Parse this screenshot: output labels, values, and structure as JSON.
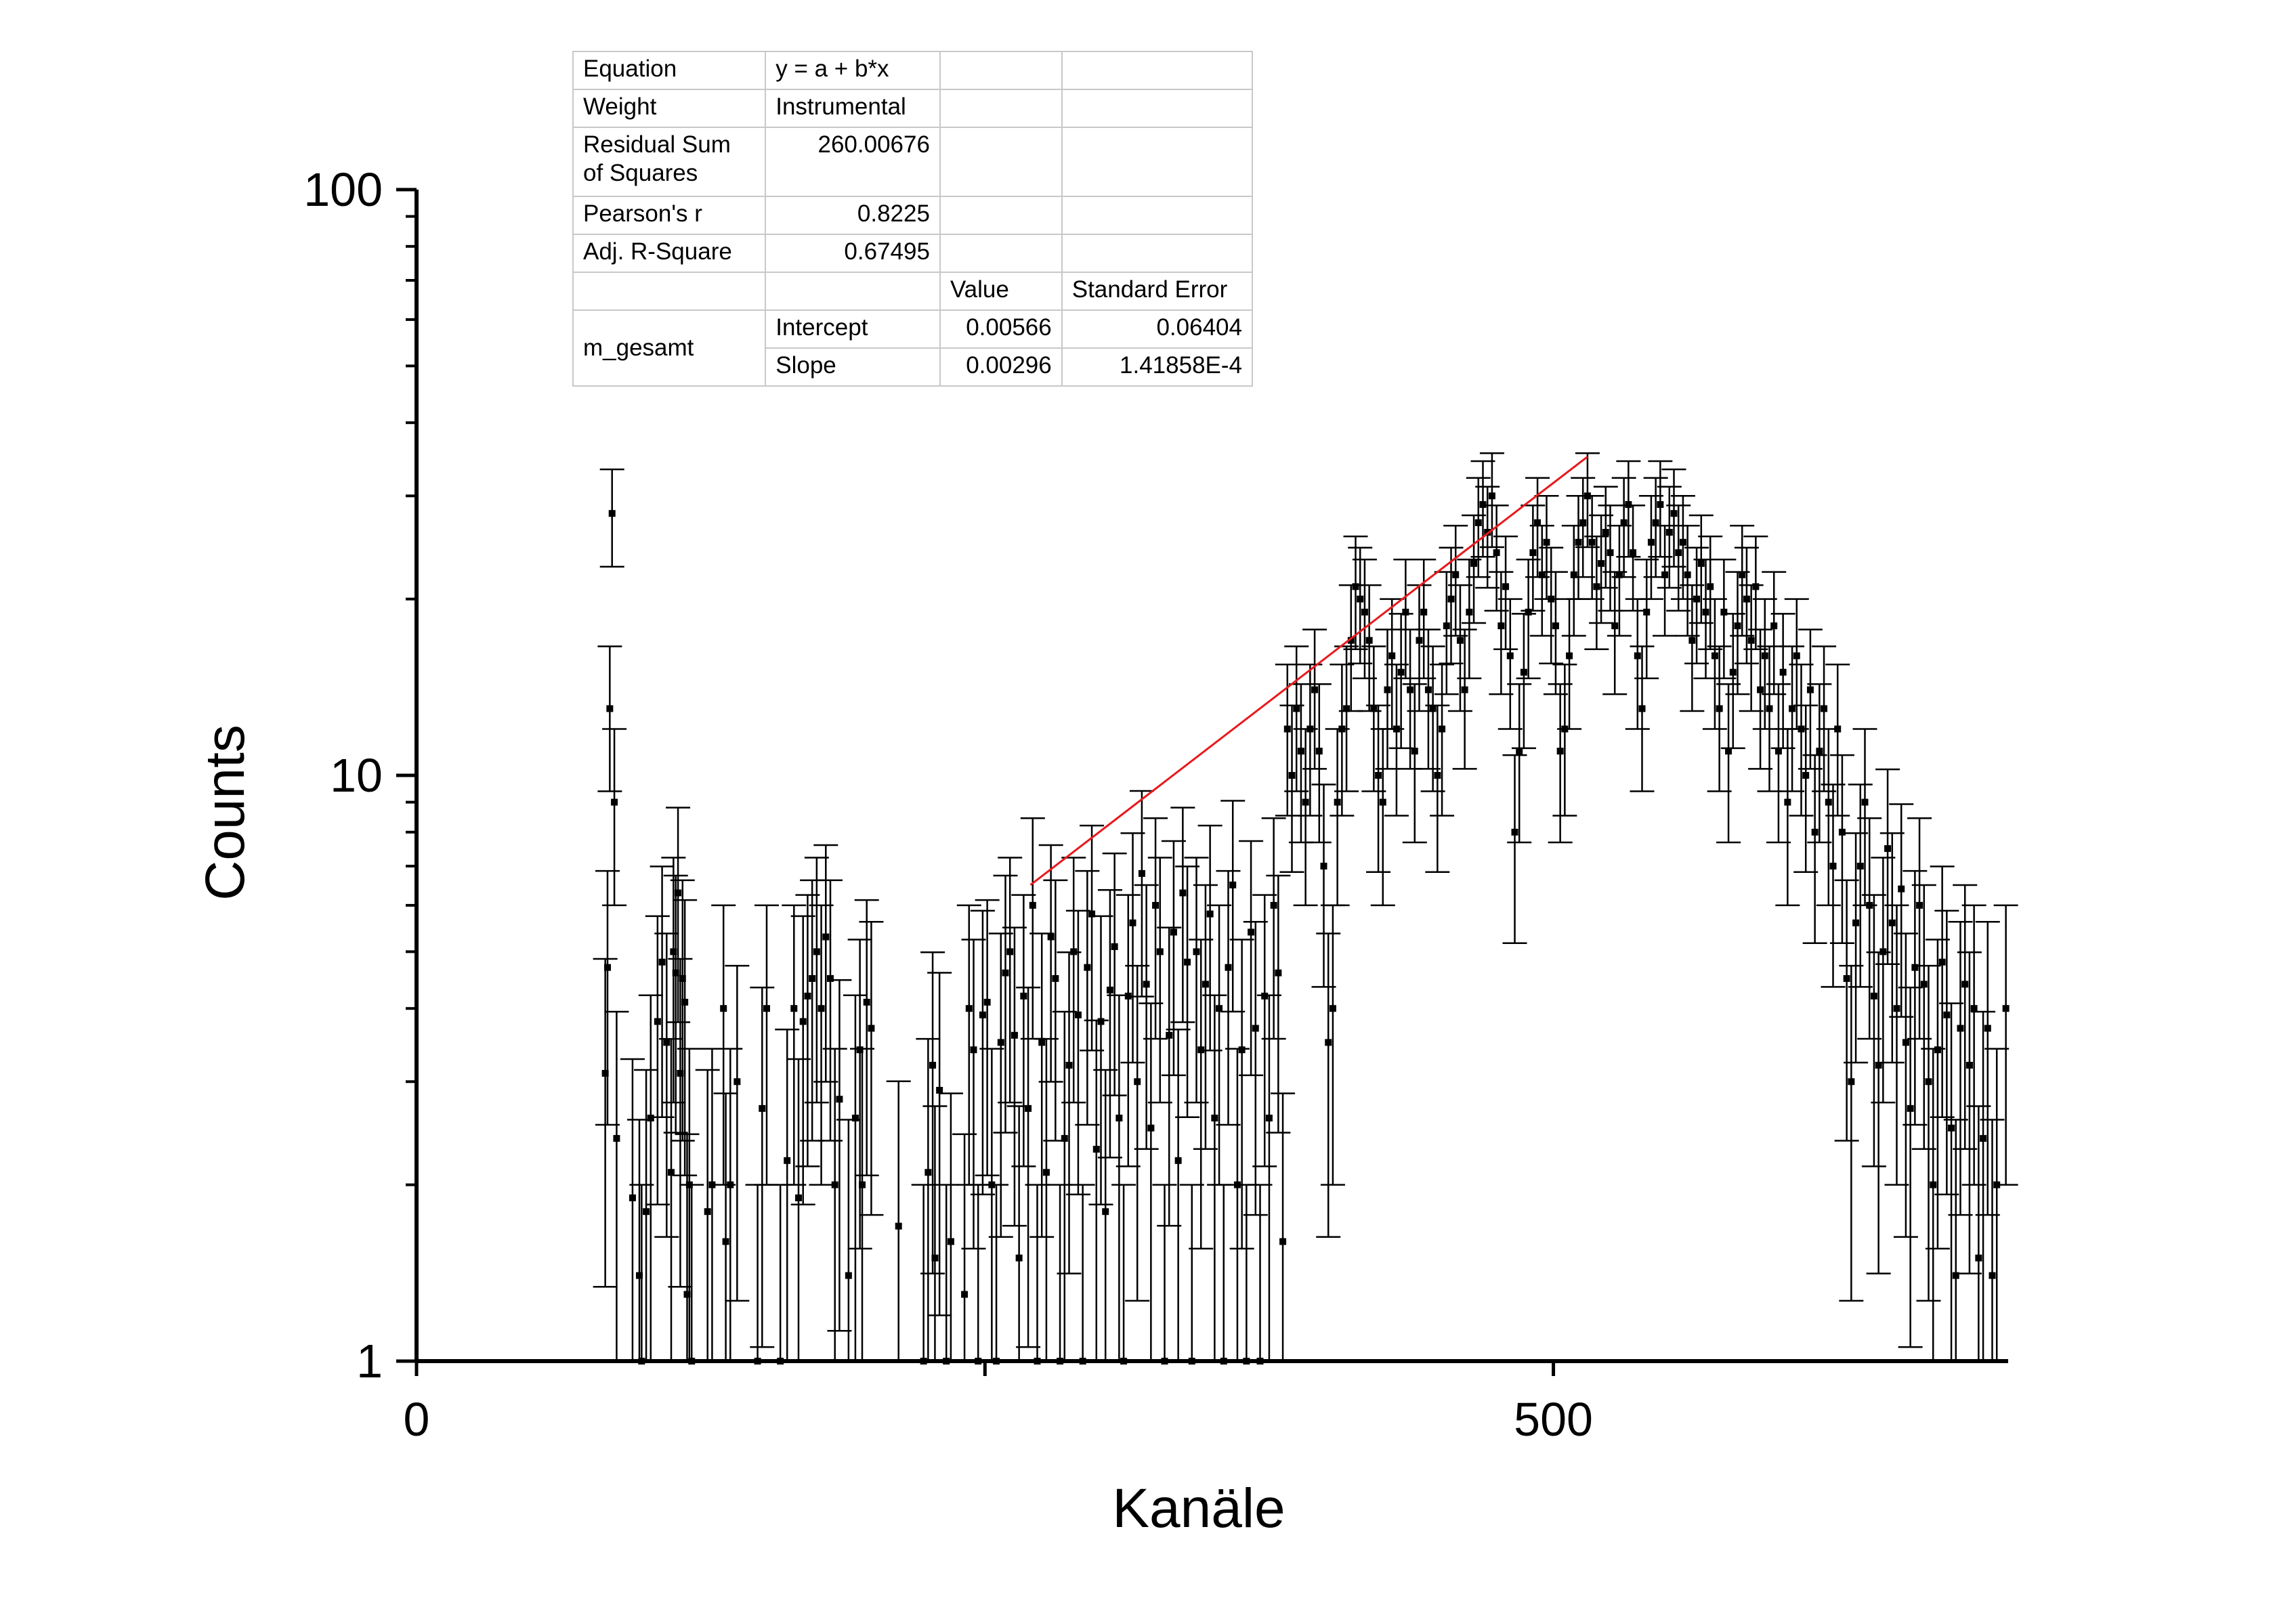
{
  "chart_data": {
    "type": "scatter",
    "xlabel": "Kanäle",
    "ylabel": "Counts",
    "xlim": [
      0,
      700
    ],
    "ylim": [
      1,
      100
    ],
    "yscale": "log",
    "x_ticks": [
      "0",
      "500"
    ],
    "y_ticks": [
      "1",
      "10",
      "100"
    ],
    "grid": false,
    "fit_line": {
      "color": "#e8191c",
      "x_range": [
        270,
        515
      ],
      "y_range": [
        6.5,
        35
      ]
    },
    "series_color": "#000000",
    "points": [
      [
        83,
        3.1
      ],
      [
        84,
        4.7
      ],
      [
        85,
        13
      ],
      [
        86,
        28
      ],
      [
        87,
        9
      ],
      [
        88,
        2.4
      ],
      [
        95,
        1.9
      ],
      [
        98,
        1.4
      ],
      [
        99,
        1.0
      ],
      [
        101,
        1.8
      ],
      [
        103,
        2.6
      ],
      [
        106,
        3.8
      ],
      [
        108,
        4.8
      ],
      [
        110,
        3.5
      ],
      [
        112,
        2.1
      ],
      [
        113,
        5.0
      ],
      [
        114,
        4.6
      ],
      [
        115,
        6.3
      ],
      [
        116,
        3.1
      ],
      [
        117,
        4.5
      ],
      [
        118,
        4.1
      ],
      [
        119,
        1.3
      ],
      [
        120,
        2.0
      ],
      [
        121,
        1.0
      ],
      [
        128,
        1.8
      ],
      [
        130,
        2.0
      ],
      [
        135,
        4.0
      ],
      [
        136,
        1.6
      ],
      [
        138,
        2.0
      ],
      [
        141,
        3.0
      ],
      [
        150,
        1.0
      ],
      [
        152,
        2.7
      ],
      [
        154,
        4.0
      ],
      [
        160,
        1.0
      ],
      [
        163,
        2.2
      ],
      [
        166,
        4.0
      ],
      [
        168,
        1.9
      ],
      [
        170,
        3.8
      ],
      [
        172,
        4.2
      ],
      [
        174,
        4.5
      ],
      [
        176,
        5.0
      ],
      [
        178,
        4.0
      ],
      [
        180,
        5.3
      ],
      [
        182,
        4.5
      ],
      [
        184,
        2.0
      ],
      [
        186,
        2.8
      ],
      [
        190,
        1.4
      ],
      [
        193,
        2.6
      ],
      [
        195,
        3.4
      ],
      [
        196,
        2.0
      ],
      [
        198,
        4.1
      ],
      [
        200,
        3.7
      ],
      [
        212,
        1.7
      ],
      [
        223,
        1.0
      ],
      [
        225,
        2.1
      ],
      [
        227,
        3.2
      ],
      [
        228,
        1.5
      ],
      [
        230,
        2.9
      ],
      [
        233,
        1.0
      ],
      [
        235,
        1.6
      ],
      [
        241,
        1.3
      ],
      [
        243,
        4.0
      ],
      [
        245,
        3.4
      ],
      [
        247,
        1.0
      ],
      [
        249,
        3.9
      ],
      [
        251,
        4.1
      ],
      [
        253,
        2.0
      ],
      [
        255,
        1.0
      ],
      [
        257,
        3.5
      ],
      [
        259,
        4.6
      ],
      [
        261,
        5.0
      ],
      [
        263,
        3.6
      ],
      [
        265,
        1.5
      ],
      [
        267,
        4.2
      ],
      [
        269,
        2.7
      ],
      [
        271,
        6.0
      ],
      [
        273,
        1.0
      ],
      [
        275,
        3.5
      ],
      [
        277,
        2.1
      ],
      [
        279,
        5.3
      ],
      [
        281,
        4.5
      ],
      [
        283,
        1.0
      ],
      [
        285,
        2.4
      ],
      [
        287,
        3.2
      ],
      [
        289,
        5.0
      ],
      [
        291,
        3.9
      ],
      [
        293,
        1.0
      ],
      [
        295,
        4.7
      ],
      [
        297,
        5.8
      ],
      [
        299,
        2.3
      ],
      [
        301,
        3.8
      ],
      [
        303,
        1.8
      ],
      [
        305,
        4.3
      ],
      [
        307,
        5.1
      ],
      [
        309,
        2.6
      ],
      [
        311,
        1.0
      ],
      [
        313,
        4.2
      ],
      [
        315,
        5.6
      ],
      [
        317,
        3.0
      ],
      [
        319,
        6.8
      ],
      [
        321,
        4.4
      ],
      [
        323,
        2.5
      ],
      [
        325,
        6.0
      ],
      [
        327,
        5.0
      ],
      [
        329,
        1.0
      ],
      [
        331,
        3.6
      ],
      [
        333,
        5.4
      ],
      [
        335,
        2.2
      ],
      [
        337,
        6.3
      ],
      [
        339,
        4.8
      ],
      [
        341,
        1.0
      ],
      [
        343,
        5.0
      ],
      [
        345,
        3.4
      ],
      [
        347,
        4.4
      ],
      [
        349,
        5.8
      ],
      [
        351,
        2.6
      ],
      [
        353,
        4.0
      ],
      [
        355,
        1.0
      ],
      [
        357,
        4.7
      ],
      [
        359,
        6.5
      ],
      [
        361,
        2.0
      ],
      [
        363,
        3.4
      ],
      [
        365,
        1.0
      ],
      [
        367,
        5.4
      ],
      [
        369,
        3.7
      ],
      [
        371,
        1.0
      ],
      [
        373,
        4.2
      ],
      [
        375,
        2.6
      ],
      [
        377,
        6.0
      ],
      [
        379,
        4.6
      ],
      [
        381,
        1.6
      ],
      [
        383,
        12
      ],
      [
        385,
        10
      ],
      [
        387,
        13
      ],
      [
        389,
        11
      ],
      [
        391,
        9
      ],
      [
        393,
        12
      ],
      [
        395,
        14
      ],
      [
        397,
        11
      ],
      [
        399,
        7
      ],
      [
        401,
        3.5
      ],
      [
        403,
        4.0
      ],
      [
        405,
        9
      ],
      [
        407,
        12
      ],
      [
        409,
        13
      ],
      [
        411,
        17
      ],
      [
        413,
        21
      ],
      [
        415,
        20
      ],
      [
        417,
        19
      ],
      [
        419,
        17
      ],
      [
        421,
        13
      ],
      [
        423,
        10
      ],
      [
        425,
        9
      ],
      [
        427,
        14
      ],
      [
        429,
        16
      ],
      [
        431,
        12
      ],
      [
        433,
        15
      ],
      [
        435,
        19
      ],
      [
        437,
        14
      ],
      [
        439,
        11
      ],
      [
        441,
        17
      ],
      [
        443,
        19
      ],
      [
        445,
        14
      ],
      [
        447,
        13
      ],
      [
        449,
        10
      ],
      [
        451,
        12
      ],
      [
        453,
        18
      ],
      [
        455,
        20
      ],
      [
        457,
        22
      ],
      [
        459,
        17
      ],
      [
        461,
        14
      ],
      [
        463,
        19
      ],
      [
        465,
        23
      ],
      [
        467,
        27
      ],
      [
        469,
        29
      ],
      [
        471,
        26
      ],
      [
        473,
        30
      ],
      [
        475,
        24
      ],
      [
        477,
        18
      ],
      [
        479,
        21
      ],
      [
        481,
        16
      ],
      [
        483,
        8
      ],
      [
        485,
        11
      ],
      [
        487,
        15
      ],
      [
        489,
        19
      ],
      [
        491,
        24
      ],
      [
        493,
        27
      ],
      [
        495,
        22
      ],
      [
        497,
        25
      ],
      [
        499,
        20
      ],
      [
        501,
        18
      ],
      [
        503,
        11
      ],
      [
        505,
        12
      ],
      [
        507,
        16
      ],
      [
        509,
        22
      ],
      [
        511,
        25
      ],
      [
        513,
        27
      ],
      [
        515,
        30
      ],
      [
        517,
        25
      ],
      [
        519,
        21
      ],
      [
        521,
        23
      ],
      [
        523,
        26
      ],
      [
        525,
        24
      ],
      [
        527,
        18
      ],
      [
        529,
        22
      ],
      [
        531,
        27
      ],
      [
        533,
        29
      ],
      [
        535,
        24
      ],
      [
        537,
        16
      ],
      [
        539,
        13
      ],
      [
        541,
        19
      ],
      [
        543,
        25
      ],
      [
        545,
        27
      ],
      [
        547,
        29
      ],
      [
        549,
        22
      ],
      [
        551,
        26
      ],
      [
        553,
        28
      ],
      [
        555,
        24
      ],
      [
        557,
        25
      ],
      [
        559,
        22
      ],
      [
        561,
        17
      ],
      [
        563,
        20
      ],
      [
        565,
        23
      ],
      [
        567,
        19
      ],
      [
        569,
        21
      ],
      [
        571,
        16
      ],
      [
        573,
        13
      ],
      [
        575,
        19
      ],
      [
        577,
        11
      ],
      [
        579,
        15
      ],
      [
        581,
        18
      ],
      [
        583,
        22
      ],
      [
        585,
        20
      ],
      [
        587,
        17
      ],
      [
        589,
        21
      ],
      [
        591,
        14
      ],
      [
        593,
        16
      ],
      [
        595,
        13
      ],
      [
        597,
        18
      ],
      [
        599,
        11
      ],
      [
        601,
        15
      ],
      [
        603,
        9
      ],
      [
        605,
        13
      ],
      [
        607,
        16
      ],
      [
        609,
        12
      ],
      [
        611,
        10
      ],
      [
        613,
        14
      ],
      [
        615,
        8
      ],
      [
        617,
        11
      ],
      [
        619,
        13
      ],
      [
        621,
        9
      ],
      [
        623,
        7
      ],
      [
        625,
        12
      ],
      [
        627,
        8
      ],
      [
        629,
        4.5
      ],
      [
        631,
        3.0
      ],
      [
        633,
        5.6
      ],
      [
        635,
        7
      ],
      [
        637,
        9
      ],
      [
        639,
        6
      ],
      [
        641,
        4.2
      ],
      [
        643,
        3.2
      ],
      [
        645,
        5.0
      ],
      [
        647,
        7.5
      ],
      [
        649,
        5.6
      ],
      [
        651,
        4.0
      ],
      [
        653,
        6.4
      ],
      [
        655,
        3.5
      ],
      [
        657,
        2.7
      ],
      [
        659,
        4.7
      ],
      [
        661,
        6.0
      ],
      [
        663,
        4.4
      ],
      [
        665,
        3.0
      ],
      [
        667,
        2.0
      ],
      [
        669,
        3.4
      ],
      [
        671,
        4.8
      ],
      [
        673,
        3.9
      ],
      [
        675,
        2.5
      ],
      [
        677,
        1.4
      ],
      [
        679,
        3.7
      ],
      [
        681,
        4.4
      ],
      [
        683,
        3.2
      ],
      [
        685,
        4.0
      ],
      [
        687,
        1.5
      ],
      [
        689,
        2.4
      ],
      [
        691,
        3.7
      ],
      [
        693,
        1.4
      ],
      [
        695,
        2.0
      ],
      [
        699,
        4.0
      ]
    ],
    "fit_stats": {
      "header": [
        "",
        "",
        "Value",
        "Standard Error"
      ],
      "equation_label": "Equation",
      "equation_value": "y = a + b*x",
      "weight_label": "Weight",
      "weight_value": "Instrumental",
      "rss_label": "Residual Sum of Squares",
      "rss_value": "260.00676",
      "pearson_label": "Pearson's r",
      "pearson_value": "0.8225",
      "adjr_label": "Adj. R-Square",
      "adjr_value": "0.67495",
      "dataset_label": "m_gesamt",
      "intercept_label": "Intercept",
      "intercept_value": "0.00566",
      "intercept_error": "0.06404",
      "slope_label": "Slope",
      "slope_value": "0.00296",
      "slope_error": "1.41858E-4"
    }
  }
}
